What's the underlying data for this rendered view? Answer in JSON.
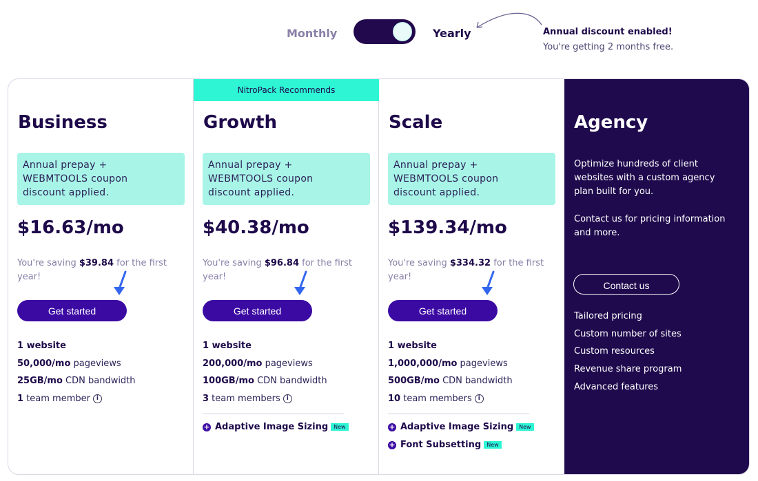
{
  "billing_toggle": {
    "monthly_label": "Monthly",
    "yearly_label": "Yearly",
    "selected": "Yearly",
    "discount_title": "Annual discount enabled!",
    "discount_subtitle": "You're getting 2 months free."
  },
  "recommend_badge": "NitroPack Recommends",
  "plans": [
    {
      "name": "Business",
      "coupon_line1": "Annual prepay +",
      "coupon_line2": "WEBMTOOLS coupon",
      "coupon_line3": "discount applied.",
      "price": "$16.63/mo",
      "saving_prefix": "You're saving ",
      "saving_amount": "$39.84",
      "saving_suffix": " for the first year!",
      "cta": "Get started",
      "features": [
        {
          "bold": "1 website",
          "text": ""
        },
        {
          "bold": "50,000/mo",
          "text": " pageviews"
        },
        {
          "bold": "25GB/mo",
          "text": " CDN bandwidth"
        },
        {
          "bold": "1",
          "text": " team member"
        }
      ]
    },
    {
      "name": "Growth",
      "coupon_line1": "Annual prepay +",
      "coupon_line2": "WEBMTOOLS coupon",
      "coupon_line3": "discount applied.",
      "price": "$40.38/mo",
      "saving_prefix": "You're saving ",
      "saving_amount": "$96.84",
      "saving_suffix": " for the first year!",
      "cta": "Get started",
      "features": [
        {
          "bold": "1 website",
          "text": ""
        },
        {
          "bold": "200,000/mo",
          "text": " pageviews"
        },
        {
          "bold": "100GB/mo",
          "text": " CDN bandwidth"
        },
        {
          "bold": "3",
          "text": " team members"
        }
      ],
      "addons": [
        {
          "label": "Adaptive Image Sizing",
          "badge": "New"
        }
      ]
    },
    {
      "name": "Scale",
      "coupon_line1": "Annual prepay +",
      "coupon_line2": "WEBMTOOLS coupon",
      "coupon_line3": "discount applied.",
      "price": "$139.34/mo",
      "saving_prefix": "You're saving ",
      "saving_amount": "$334.32",
      "saving_suffix": " for the first year!",
      "cta": "Get started",
      "features": [
        {
          "bold": "1 website",
          "text": ""
        },
        {
          "bold": "1,000,000/mo",
          "text": " pageviews"
        },
        {
          "bold": "500GB/mo",
          "text": " CDN bandwidth"
        },
        {
          "bold": "10",
          "text": " team members"
        }
      ],
      "addons": [
        {
          "label": "Adaptive Image Sizing",
          "badge": "New"
        },
        {
          "label": "Font Subsetting",
          "badge": "New"
        }
      ]
    }
  ],
  "agency": {
    "name": "Agency",
    "description": "Optimize hundreds of client websites with a custom agency plan built for you.",
    "contact_info": "Contact us for pricing information and more.",
    "cta": "Contact us",
    "features": [
      "Tailored pricing",
      "Custom number of sites",
      "Custom resources",
      "Revenue share program",
      "Advanced features"
    ]
  },
  "colors": {
    "brand_dark": "#1f0a4d",
    "button": "#3b0aa3",
    "accent_teal": "#2ef5d4",
    "coupon_bg": "#a8f5e8",
    "pointer_arrow": "#3366ee"
  },
  "icons": {
    "info": "info-icon",
    "plus": "plus-circle-icon",
    "pointer": "pointer-arrow-icon",
    "curved_arrow": "curved-arrow-icon"
  }
}
